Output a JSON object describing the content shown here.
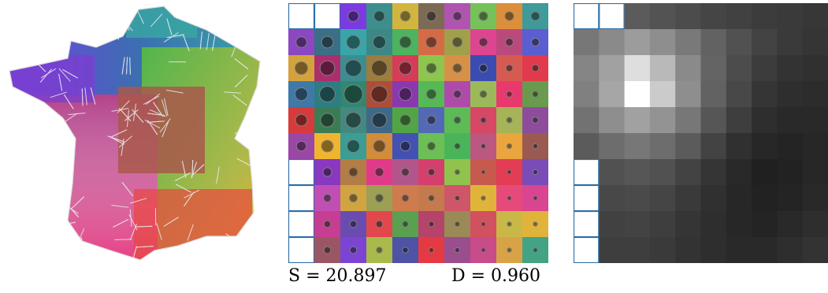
{
  "grid": {
    "rows": 10,
    "cols": 10,
    "empty_cells": [
      [
        0,
        0
      ],
      [
        0,
        1
      ],
      [
        6,
        0
      ],
      [
        7,
        0
      ],
      [
        8,
        0
      ],
      [
        9,
        0
      ]
    ],
    "cells": [
      [
        null,
        null,
        {
          "c": "#7b3be0",
          "d": 0.55
        },
        {
          "c": "#3c8f8c",
          "d": 0.55
        },
        {
          "c": "#d2b53e",
          "d": 0.5
        },
        {
          "c": "#7c6a55",
          "d": 0.5
        },
        {
          "c": "#b053b1",
          "d": 0.45
        },
        {
          "c": "#76c15a",
          "d": 0.45
        },
        {
          "c": "#dc8f3b",
          "d": 0.45
        },
        {
          "c": "#3f9a99",
          "d": 0.45
        }
      ],
      [
        {
          "c": "#8b48c0",
          "d": 0.55
        },
        {
          "c": "#3a6f85",
          "d": 0.6
        },
        {
          "c": "#3aa5a8",
          "d": 0.7
        },
        {
          "c": "#3b8887",
          "d": 0.65
        },
        {
          "c": "#4db35e",
          "d": 0.6
        },
        {
          "c": "#d76a46",
          "d": 0.55
        },
        {
          "c": "#a0a04a",
          "d": 0.5
        },
        {
          "c": "#de4590",
          "d": 0.45
        },
        {
          "c": "#ba4a7b",
          "d": 0.4
        },
        {
          "c": "#5b5ed0",
          "d": 0.4
        }
      ],
      [
        {
          "c": "#d4a23d",
          "d": 0.65
        },
        {
          "c": "#ab2f6d",
          "d": 0.75
        },
        {
          "c": "#3b8d92",
          "d": 0.85
        },
        {
          "c": "#9d7c3d",
          "d": 0.8
        },
        {
          "c": "#d63c58",
          "d": 0.65
        },
        {
          "c": "#8cc64e",
          "d": 0.5
        },
        {
          "c": "#d79147",
          "d": 0.45
        },
        {
          "c": "#3b4cb0",
          "d": 0.4
        },
        {
          "c": "#d75a51",
          "d": 0.35
        },
        {
          "c": "#e03a4c",
          "d": 0.35
        }
      ],
      [
        {
          "c": "#3f79a8",
          "d": 0.65
        },
        {
          "c": "#2d7d82",
          "d": 0.8
        },
        {
          "c": "#31876f",
          "d": 0.95
        },
        {
          "c": "#b04d3a",
          "d": 0.85
        },
        {
          "c": "#8a38b0",
          "d": 0.65
        },
        {
          "c": "#55b956",
          "d": 0.5
        },
        {
          "c": "#b04aaa",
          "d": 0.4
        },
        {
          "c": "#9cb95a",
          "d": 0.35
        },
        {
          "c": "#e8396d",
          "d": 0.3
        },
        {
          "c": "#6a9a4e",
          "d": 0.3
        }
      ],
      [
        {
          "c": "#d63a3b",
          "d": 0.6
        },
        {
          "c": "#3a7d55",
          "d": 0.7
        },
        {
          "c": "#43897f",
          "d": 0.8
        },
        {
          "c": "#3e6a87",
          "d": 0.75
        },
        {
          "c": "#52a545",
          "d": 0.55
        },
        {
          "c": "#5469b5",
          "d": 0.45
        },
        {
          "c": "#5cbb55",
          "d": 0.35
        },
        {
          "c": "#d64866",
          "d": 0.3
        },
        {
          "c": "#a4b457",
          "d": 0.28
        },
        {
          "c": "#8e4d9a",
          "d": 0.3
        }
      ],
      [
        {
          "c": "#9a47a6",
          "d": 0.5
        },
        {
          "c": "#f1b431",
          "d": 0.6
        },
        {
          "c": "#3b9d94",
          "d": 0.65
        },
        {
          "c": "#d28c3a",
          "d": 0.6
        },
        {
          "c": "#4352b2",
          "d": 0.5
        },
        {
          "c": "#6bbf54",
          "d": 0.4
        },
        {
          "c": "#49b558",
          "d": 0.3
        },
        {
          "c": "#bb5780",
          "d": 0.25
        },
        {
          "c": "#eaa53f",
          "d": 0.25
        },
        {
          "c": "#9a5a52",
          "d": 0.25
        }
      ],
      [
        null,
        {
          "c": "#8a38c0",
          "d": 0.45
        },
        {
          "c": "#b37d45",
          "d": 0.45
        },
        {
          "c": "#e23a8b",
          "d": 0.45
        },
        {
          "c": "#b2558b",
          "d": 0.4
        },
        {
          "c": "#d43f6d",
          "d": 0.35
        },
        {
          "c": "#90c34e",
          "d": 0.25
        },
        {
          "c": "#c65a4d",
          "d": 0.2
        },
        {
          "c": "#e33c55",
          "d": 0.22
        },
        {
          "c": "#7a4cb8",
          "d": 0.25
        }
      ],
      [
        null,
        {
          "c": "#c14eb5",
          "d": 0.4
        },
        {
          "c": "#d0a440",
          "d": 0.4
        },
        {
          "c": "#9ba055",
          "d": 0.4
        },
        {
          "c": "#d07b4d",
          "d": 0.35
        },
        {
          "c": "#c57a4d",
          "d": 0.3
        },
        {
          "c": "#cf5568",
          "d": 0.25
        },
        {
          "c": "#e0b43a",
          "d": 0.22
        },
        {
          "c": "#e64a7a",
          "d": 0.22
        },
        {
          "c": "#d94590",
          "d": 0.22
        }
      ],
      [
        null,
        {
          "c": "#c63d92",
          "d": 0.35
        },
        {
          "c": "#6a4cb0",
          "d": 0.35
        },
        {
          "c": "#e2474d",
          "d": 0.35
        },
        {
          "c": "#5aa051",
          "d": 0.3
        },
        {
          "c": "#b5436a",
          "d": 0.28
        },
        {
          "c": "#9a8a57",
          "d": 0.25
        },
        {
          "c": "#d2515f",
          "d": 0.22
        },
        {
          "c": "#c9b847",
          "d": 0.22
        },
        {
          "c": "#e0b33b",
          "d": 0.22
        }
      ],
      [
        null,
        {
          "c": "#9b5663",
          "d": 0.35
        },
        {
          "c": "#7b44d2",
          "d": 0.35
        },
        {
          "c": "#a9b94b",
          "d": 0.3
        },
        {
          "c": "#4e53a5",
          "d": 0.3
        },
        {
          "c": "#e43a44",
          "d": 0.25
        },
        {
          "c": "#9a4e8d",
          "d": 0.25
        },
        {
          "c": "#c84b8a",
          "d": 0.22
        },
        {
          "c": "#d8a347",
          "d": 0.22
        },
        {
          "c": "#43a384",
          "d": 0.22
        }
      ]
    ]
  },
  "heatmap": {
    "rows": 10,
    "cols": 10,
    "empty_cells": [
      [
        0,
        0
      ],
      [
        0,
        1
      ],
      [
        6,
        0
      ],
      [
        7,
        0
      ],
      [
        8,
        0
      ],
      [
        9,
        0
      ]
    ],
    "values": [
      [
        null,
        null,
        0.3,
        0.27,
        0.24,
        0.21,
        0.19,
        0.17,
        0.16,
        0.15
      ],
      [
        0.42,
        0.5,
        0.58,
        0.52,
        0.43,
        0.33,
        0.26,
        0.2,
        0.16,
        0.14
      ],
      [
        0.48,
        0.6,
        0.86,
        0.7,
        0.5,
        0.34,
        0.24,
        0.17,
        0.13,
        0.12
      ],
      [
        0.46,
        0.62,
        1.0,
        0.78,
        0.52,
        0.33,
        0.22,
        0.14,
        0.11,
        0.1
      ],
      [
        0.4,
        0.52,
        0.6,
        0.54,
        0.42,
        0.28,
        0.18,
        0.11,
        0.09,
        0.09
      ],
      [
        0.3,
        0.38,
        0.42,
        0.38,
        0.3,
        0.2,
        0.12,
        0.08,
        0.07,
        0.08
      ],
      [
        null,
        0.26,
        0.28,
        0.26,
        0.2,
        0.14,
        0.09,
        0.05,
        0.06,
        0.08
      ],
      [
        null,
        0.22,
        0.23,
        0.21,
        0.16,
        0.12,
        0.08,
        0.06,
        0.07,
        0.09
      ],
      [
        null,
        0.19,
        0.2,
        0.18,
        0.14,
        0.11,
        0.08,
        0.07,
        0.09,
        0.11
      ],
      [
        null,
        0.18,
        0.18,
        0.16,
        0.13,
        0.11,
        0.09,
        0.09,
        0.11,
        0.13
      ]
    ]
  },
  "stats": {
    "s_label": "S = 20.897",
    "d_label": "D = 0.960"
  },
  "colors": {
    "empty_cell_border": "#2f6fa8",
    "map_border": "#e8e8e8"
  }
}
